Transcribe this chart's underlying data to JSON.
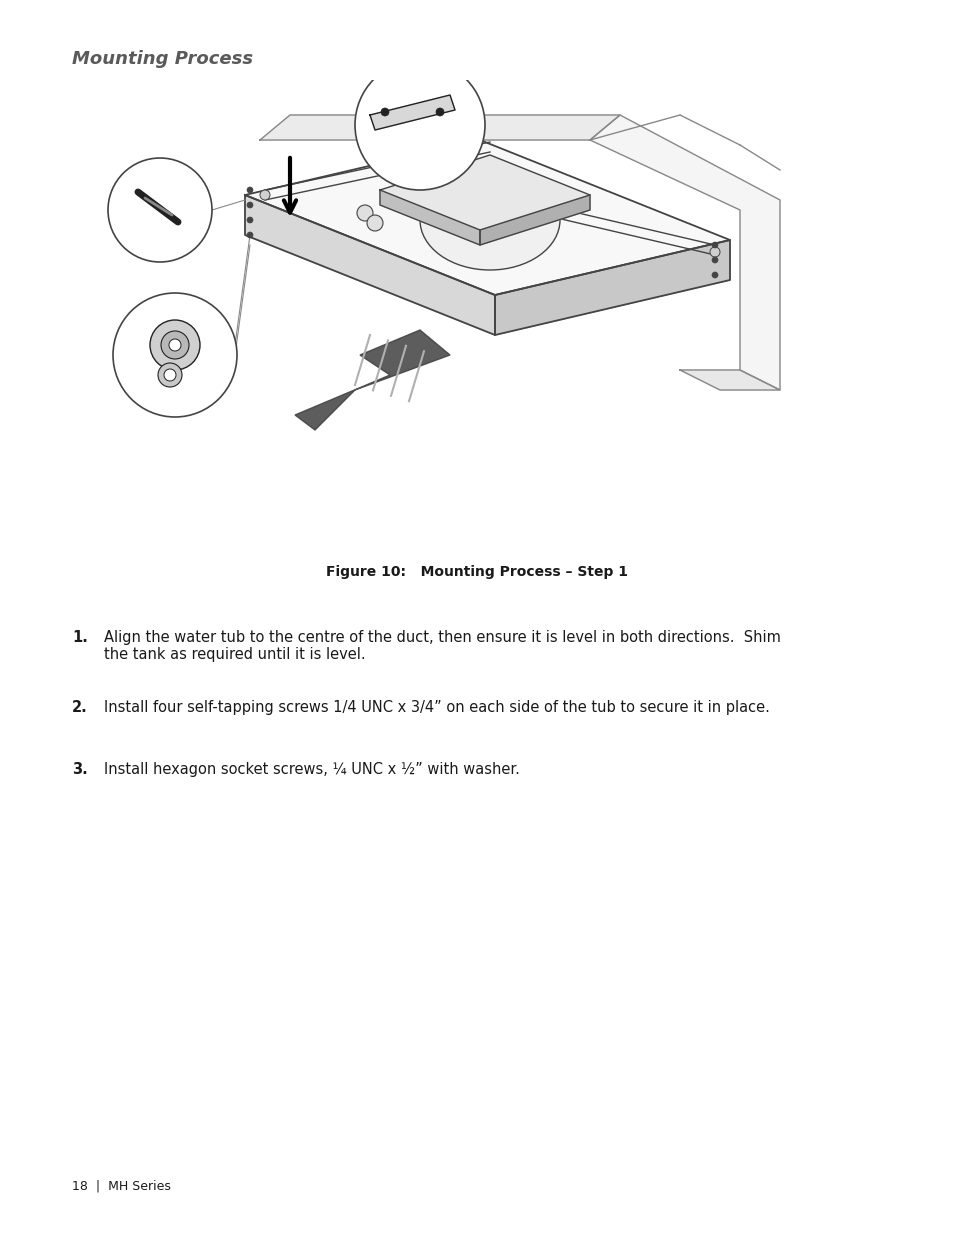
{
  "title": "Mounting Process",
  "title_color": "#5a5a5a",
  "title_fontsize": 13,
  "figure_caption": "Figure 10:   Mounting Process – Step 1",
  "figure_caption_fontsize": 10,
  "list_items": [
    {
      "number": "1.",
      "text": "Align the water tub to the centre of the duct, then ensure it is level in both directions.  Shim\nthe tank as required until it is level."
    },
    {
      "number": "2.",
      "text": "Install four self-tapping screws 1/4 UNC x 3/4” on each side of the tub to secure it in place."
    },
    {
      "number": "3.",
      "text": "Install hexagon socket screws, ¼ UNC x ½” with washer."
    }
  ],
  "footer_text": "18  |  MH Series",
  "footer_fontsize": 9,
  "background_color": "#ffffff",
  "text_color": "#1a1a1a",
  "list_fontsize": 10.5,
  "number_fontsize": 10.5
}
